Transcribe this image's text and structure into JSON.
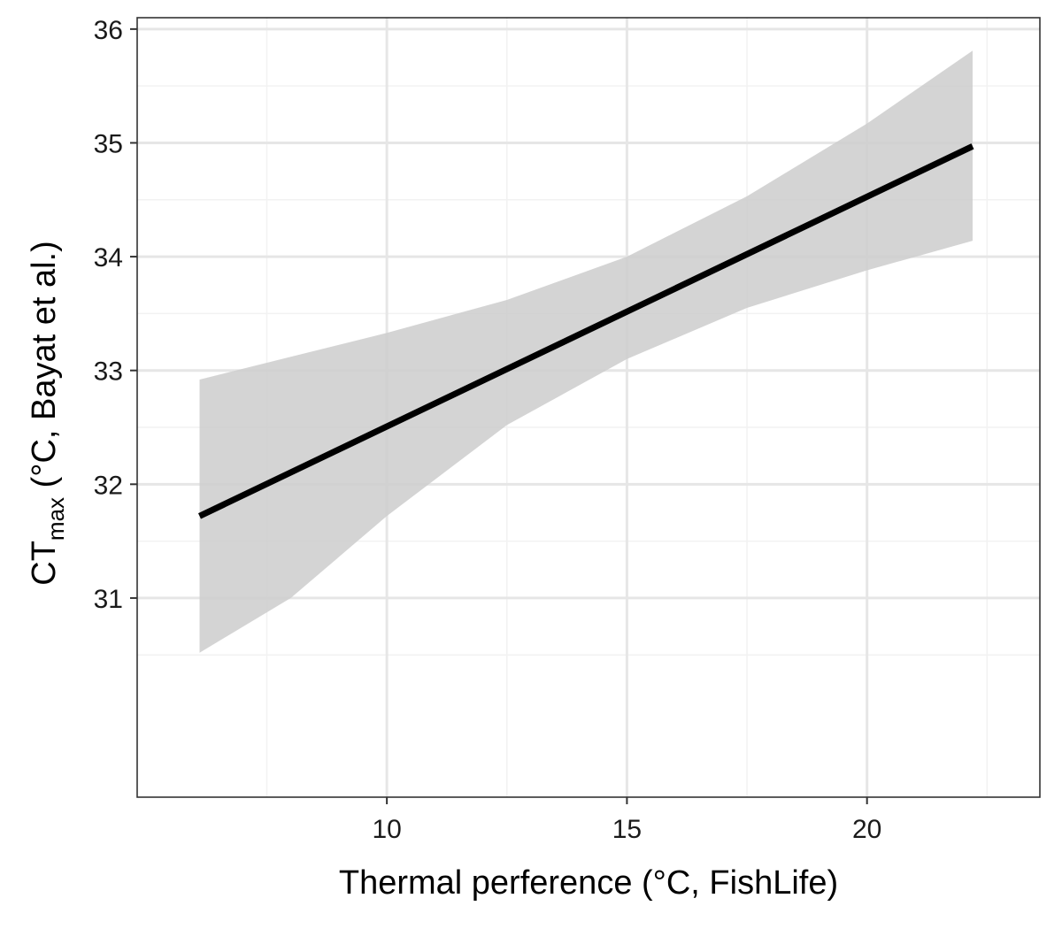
{
  "chart_data": {
    "type": "line",
    "xlabel": "Thermal perference (°C, FishLife)",
    "ylabel": {
      "prefix": "CT",
      "subscript": "max",
      "suffix": " (°C, Bayat et al.)"
    },
    "xlim": [
      4.8,
      23.6
    ],
    "ylim": [
      29.25,
      36.1
    ],
    "x_ticks": [
      10,
      15,
      20
    ],
    "x_minor_ticks": [
      7.5,
      12.5,
      17.5,
      22.5
    ],
    "y_ticks": [
      31,
      32,
      33,
      34,
      35,
      36
    ],
    "y_minor_ticks": [
      30.5,
      31.5,
      32.5,
      33.5,
      34.5,
      35.5
    ],
    "grid": true,
    "series": [
      {
        "x": [
          6.1,
          22.2
        ],
        "y": [
          31.72,
          34.97
        ]
      }
    ],
    "confidence_band": {
      "x": [
        6.1,
        8.0,
        10.0,
        12.5,
        15.0,
        17.5,
        20.0,
        22.2
      ],
      "lower": [
        30.52,
        31.0,
        31.72,
        32.52,
        33.1,
        33.55,
        33.88,
        34.14
      ],
      "upper": [
        32.92,
        33.12,
        33.33,
        33.62,
        34.0,
        34.53,
        35.17,
        35.81
      ]
    },
    "colors": {
      "line": "#000000",
      "band": "#cccccc",
      "grid_major": "#e6e6e6",
      "grid_minor": "#f2f2f2",
      "panel_border": "#333333"
    }
  }
}
